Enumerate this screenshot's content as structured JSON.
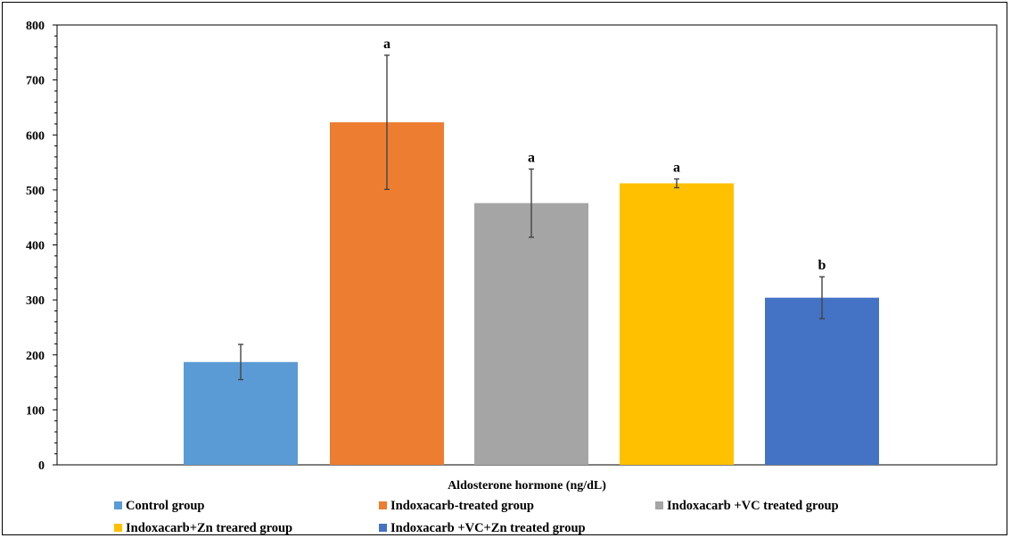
{
  "chart_data": {
    "type": "bar",
    "title": "",
    "xlabel": "Aldosterone hormone (ng/dL)",
    "ylabel": "",
    "ylim": [
      0,
      800
    ],
    "yticks": [
      0,
      100,
      200,
      300,
      400,
      500,
      600,
      700,
      800
    ],
    "grid": false,
    "legend_position": "bottom",
    "series": [
      {
        "name": "Control group",
        "value": 187,
        "error": 32,
        "significance": "",
        "color": "#5B9BD5"
      },
      {
        "name": "Indoxacarb-treated group",
        "value": 623,
        "error": 122,
        "significance": "a",
        "color": "#ED7D31"
      },
      {
        "name": "Indoxacarb +VC treated group",
        "value": 476,
        "error": 62,
        "significance": "a",
        "color": "#A5A5A5"
      },
      {
        "name": "Indoxacarb+Zn treared group",
        "value": 512,
        "error": 8,
        "significance": "a",
        "color": "#FFC000"
      },
      {
        "name": "Indoxacarb +VC+Zn treated group",
        "value": 304,
        "error": 38,
        "significance": "b",
        "color": "#4472C4"
      }
    ]
  }
}
